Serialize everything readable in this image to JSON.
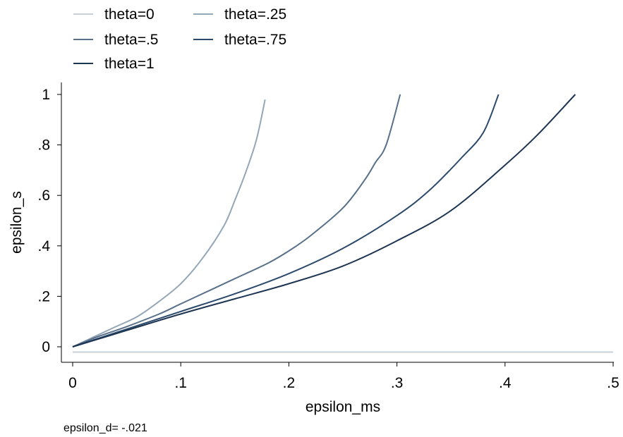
{
  "chart_data": {
    "type": "line",
    "xlabel": "epsilon_ms",
    "ylabel": "epsilon_s",
    "xlim": [
      0,
      0.5
    ],
    "ylim": [
      0,
      1
    ],
    "x_ticks": [
      {
        "v": 0,
        "label": "0"
      },
      {
        "v": 0.1,
        "label": ".1"
      },
      {
        "v": 0.2,
        "label": ".2"
      },
      {
        "v": 0.3,
        "label": ".3"
      },
      {
        "v": 0.4,
        "label": ".4"
      },
      {
        "v": 0.5,
        "label": ".5"
      }
    ],
    "y_ticks": [
      {
        "v": 0,
        "label": "0"
      },
      {
        "v": 0.2,
        "label": ".2"
      },
      {
        "v": 0.4,
        "label": ".4"
      },
      {
        "v": 0.6,
        "label": ".6"
      },
      {
        "v": 0.8,
        "label": ".8"
      },
      {
        "v": 1,
        "label": "1"
      }
    ],
    "grid": false,
    "legend_position": "top-left",
    "note": "epsilon_d= -.021",
    "series": [
      {
        "name": "theta=0",
        "color": "#c6d1d9",
        "x": [
          0,
          0.5
        ],
        "y": [
          -0.021,
          -0.021
        ]
      },
      {
        "name": "theta=.25",
        "color": "#94a7b7",
        "x": [
          0,
          0.02,
          0.04,
          0.06,
          0.08,
          0.1,
          0.12,
          0.14,
          0.15,
          0.16,
          0.17,
          0.178
        ],
        "y": [
          0,
          0.04,
          0.08,
          0.12,
          0.18,
          0.25,
          0.35,
          0.48,
          0.58,
          0.69,
          0.82,
          0.98
        ]
      },
      {
        "name": "theta=.5",
        "color": "#587089",
        "x": [
          0,
          0.02,
          0.05,
          0.08,
          0.1,
          0.13,
          0.15,
          0.18,
          0.2,
          0.22,
          0.25,
          0.27,
          0.28,
          0.29,
          0.303
        ],
        "y": [
          0,
          0.035,
          0.08,
          0.13,
          0.17,
          0.23,
          0.27,
          0.33,
          0.38,
          0.44,
          0.55,
          0.66,
          0.73,
          0.8,
          1.0
        ]
      },
      {
        "name": "theta=.75",
        "color": "#2c4a6c",
        "x": [
          0,
          0.05,
          0.1,
          0.15,
          0.2,
          0.25,
          0.3,
          0.33,
          0.36,
          0.38,
          0.394
        ],
        "y": [
          0,
          0.07,
          0.14,
          0.21,
          0.29,
          0.39,
          0.52,
          0.62,
          0.75,
          0.85,
          1.0
        ]
      },
      {
        "name": "theta=1",
        "color": "#1e3552",
        "x": [
          0,
          0.05,
          0.1,
          0.15,
          0.2,
          0.25,
          0.3,
          0.35,
          0.4,
          0.43,
          0.465
        ],
        "y": [
          0,
          0.065,
          0.13,
          0.19,
          0.25,
          0.32,
          0.42,
          0.54,
          0.72,
          0.84,
          1.0
        ]
      }
    ]
  }
}
